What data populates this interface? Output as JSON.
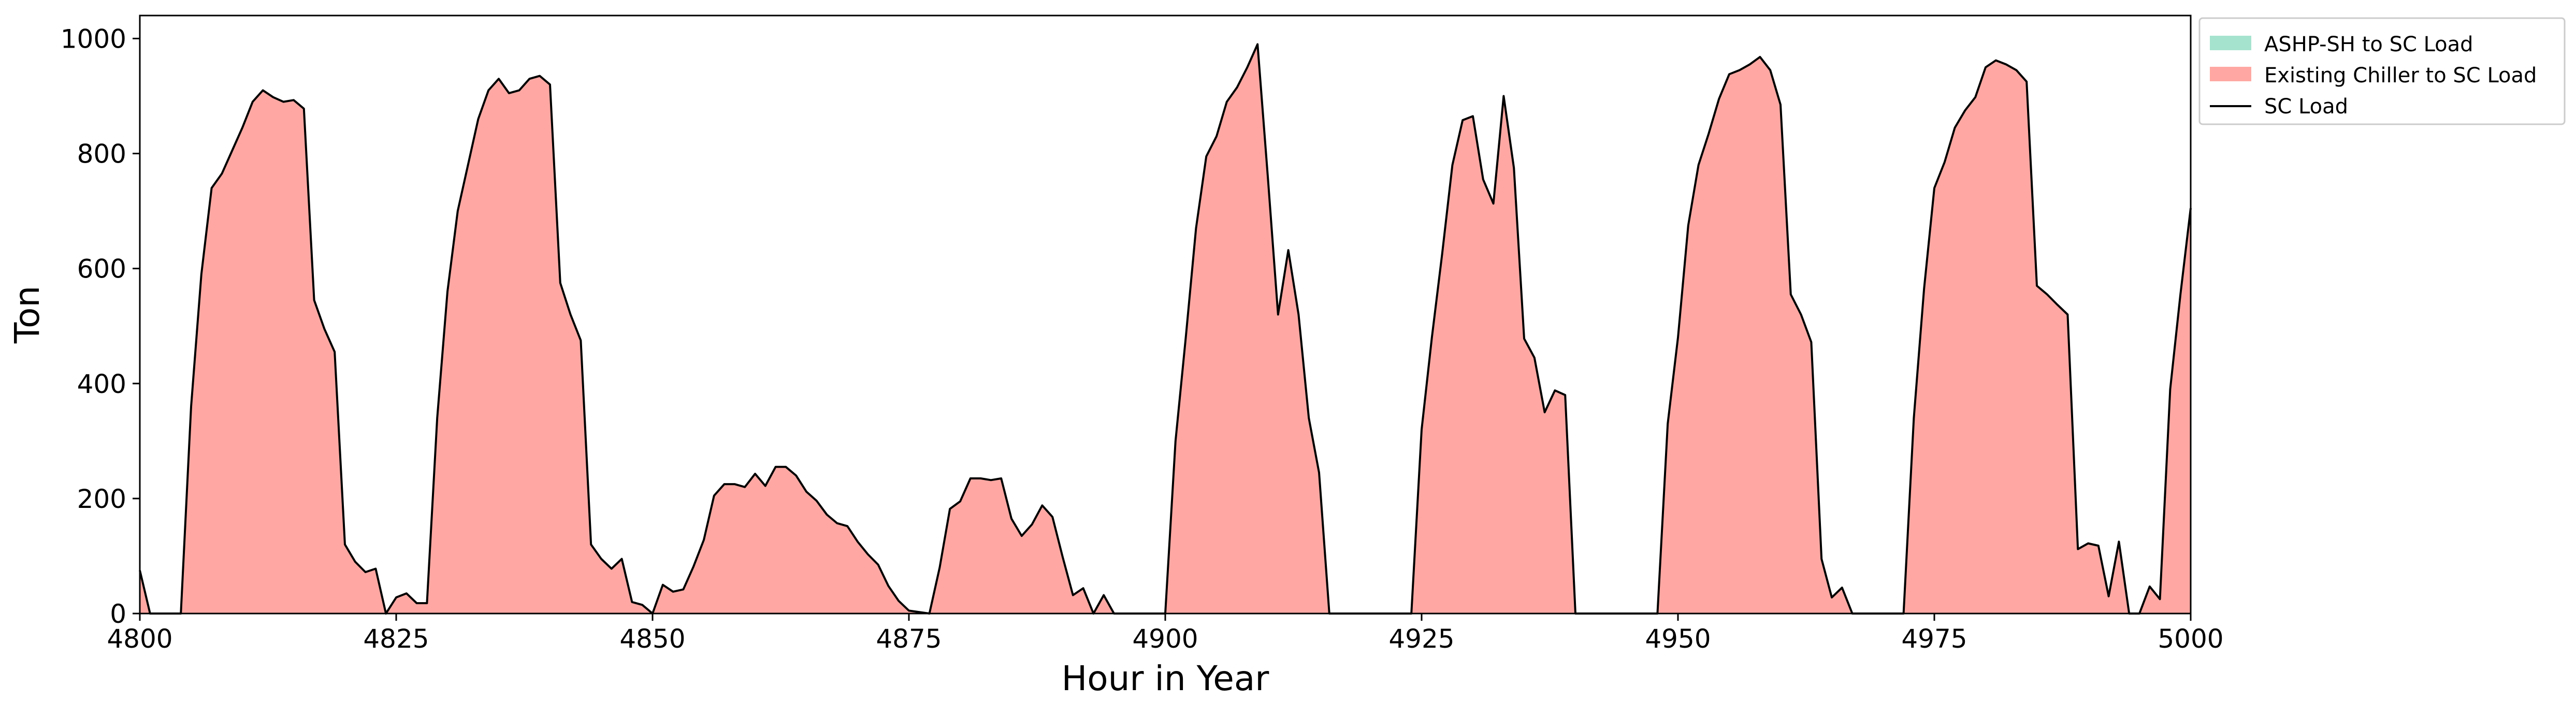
{
  "chart_data": {
    "type": "area",
    "xlabel": "Hour in Year",
    "ylabel": "Ton",
    "xlim": [
      4800,
      5000
    ],
    "ylim": [
      0,
      1040
    ],
    "xticks": [
      4800,
      4825,
      4850,
      4875,
      4900,
      4925,
      4950,
      4975,
      5000
    ],
    "yticks": [
      0,
      200,
      400,
      600,
      800,
      1000
    ],
    "grid": false,
    "legend_position": "outside-top-right",
    "colors": {
      "ashp": "#a6e3cf",
      "chiller": "#ffa8a3",
      "load_line": "#000000"
    },
    "series": [
      {
        "name": "ASHP-SH to SC Load",
        "kind": "area",
        "values": []
      },
      {
        "name": "Existing Chiller to SC Load",
        "kind": "area",
        "ref": "load"
      },
      {
        "name": "SC Load",
        "kind": "line",
        "ref": "load"
      }
    ],
    "load": [
      [
        4800,
        75
      ],
      [
        4801,
        0
      ],
      [
        4804,
        0
      ],
      [
        4805,
        360
      ],
      [
        4806,
        590
      ],
      [
        4807,
        740
      ],
      [
        4808,
        765
      ],
      [
        4809,
        805
      ],
      [
        4810,
        845
      ],
      [
        4811,
        890
      ],
      [
        4812,
        910
      ],
      [
        4813,
        898
      ],
      [
        4814,
        890
      ],
      [
        4815,
        893
      ],
      [
        4816,
        878
      ],
      [
        4817,
        545
      ],
      [
        4818,
        495
      ],
      [
        4819,
        455
      ],
      [
        4820,
        120
      ],
      [
        4821,
        90
      ],
      [
        4822,
        72
      ],
      [
        4823,
        78
      ],
      [
        4824,
        0
      ],
      [
        4825,
        28
      ],
      [
        4826,
        35
      ],
      [
        4827,
        18
      ],
      [
        4828,
        18
      ],
      [
        4829,
        340
      ],
      [
        4830,
        560
      ],
      [
        4831,
        700
      ],
      [
        4832,
        780
      ],
      [
        4833,
        860
      ],
      [
        4834,
        910
      ],
      [
        4835,
        930
      ],
      [
        4836,
        905
      ],
      [
        4837,
        910
      ],
      [
        4838,
        930
      ],
      [
        4839,
        935
      ],
      [
        4840,
        920
      ],
      [
        4841,
        575
      ],
      [
        4842,
        520
      ],
      [
        4843,
        475
      ],
      [
        4844,
        120
      ],
      [
        4845,
        95
      ],
      [
        4846,
        78
      ],
      [
        4847,
        95
      ],
      [
        4848,
        20
      ],
      [
        4849,
        15
      ],
      [
        4850,
        0
      ],
      [
        4851,
        50
      ],
      [
        4852,
        38
      ],
      [
        4853,
        42
      ],
      [
        4854,
        82
      ],
      [
        4855,
        128
      ],
      [
        4856,
        205
      ],
      [
        4857,
        225
      ],
      [
        4858,
        225
      ],
      [
        4859,
        220
      ],
      [
        4860,
        243
      ],
      [
        4861,
        222
      ],
      [
        4862,
        255
      ],
      [
        4863,
        255
      ],
      [
        4864,
        240
      ],
      [
        4865,
        212
      ],
      [
        4866,
        196
      ],
      [
        4867,
        172
      ],
      [
        4868,
        157
      ],
      [
        4869,
        152
      ],
      [
        4870,
        125
      ],
      [
        4871,
        103
      ],
      [
        4872,
        85
      ],
      [
        4873,
        48
      ],
      [
        4874,
        22
      ],
      [
        4875,
        5
      ],
      [
        4877,
        0
      ],
      [
        4878,
        80
      ],
      [
        4879,
        182
      ],
      [
        4880,
        195
      ],
      [
        4881,
        235
      ],
      [
        4882,
        235
      ],
      [
        4883,
        232
      ],
      [
        4884,
        235
      ],
      [
        4885,
        165
      ],
      [
        4886,
        135
      ],
      [
        4887,
        155
      ],
      [
        4888,
        188
      ],
      [
        4889,
        168
      ],
      [
        4890,
        98
      ],
      [
        4891,
        32
      ],
      [
        4892,
        44
      ],
      [
        4893,
        0
      ],
      [
        4894,
        32
      ],
      [
        4895,
        0
      ],
      [
        4900,
        0
      ],
      [
        4901,
        300
      ],
      [
        4902,
        480
      ],
      [
        4903,
        670
      ],
      [
        4904,
        795
      ],
      [
        4905,
        830
      ],
      [
        4906,
        890
      ],
      [
        4907,
        915
      ],
      [
        4908,
        950
      ],
      [
        4909,
        990
      ],
      [
        4910,
        760
      ],
      [
        4911,
        520
      ],
      [
        4912,
        632
      ],
      [
        4913,
        520
      ],
      [
        4914,
        340
      ],
      [
        4915,
        245
      ],
      [
        4916,
        0
      ],
      [
        4924,
        0
      ],
      [
        4925,
        320
      ],
      [
        4926,
        480
      ],
      [
        4927,
        625
      ],
      [
        4928,
        780
      ],
      [
        4929,
        858
      ],
      [
        4930,
        865
      ],
      [
        4931,
        755
      ],
      [
        4932,
        713
      ],
      [
        4933,
        900
      ],
      [
        4934,
        775
      ],
      [
        4935,
        478
      ],
      [
        4936,
        445
      ],
      [
        4937,
        350
      ],
      [
        4938,
        388
      ],
      [
        4939,
        380
      ],
      [
        4940,
        0
      ],
      [
        4948,
        0
      ],
      [
        4949,
        330
      ],
      [
        4950,
        480
      ],
      [
        4951,
        675
      ],
      [
        4952,
        780
      ],
      [
        4953,
        835
      ],
      [
        4954,
        895
      ],
      [
        4955,
        938
      ],
      [
        4956,
        945
      ],
      [
        4957,
        955
      ],
      [
        4958,
        968
      ],
      [
        4959,
        945
      ],
      [
        4960,
        885
      ],
      [
        4961,
        555
      ],
      [
        4962,
        520
      ],
      [
        4963,
        472
      ],
      [
        4964,
        95
      ],
      [
        4965,
        28
      ],
      [
        4966,
        45
      ],
      [
        4967,
        0
      ],
      [
        4972,
        0
      ],
      [
        4973,
        340
      ],
      [
        4974,
        565
      ],
      [
        4975,
        740
      ],
      [
        4976,
        785
      ],
      [
        4977,
        845
      ],
      [
        4978,
        875
      ],
      [
        4979,
        898
      ],
      [
        4980,
        950
      ],
      [
        4981,
        962
      ],
      [
        4982,
        955
      ],
      [
        4983,
        945
      ],
      [
        4984,
        925
      ],
      [
        4985,
        570
      ],
      [
        4986,
        555
      ],
      [
        4987,
        537
      ],
      [
        4988,
        520
      ],
      [
        4989,
        112
      ],
      [
        4990,
        122
      ],
      [
        4991,
        118
      ],
      [
        4992,
        30
      ],
      [
        4993,
        125
      ],
      [
        4994,
        0
      ],
      [
        4995,
        0
      ],
      [
        4996,
        47
      ],
      [
        4997,
        25
      ],
      [
        4998,
        390
      ],
      [
        4999,
        555
      ],
      [
        5000,
        705
      ]
    ]
  }
}
